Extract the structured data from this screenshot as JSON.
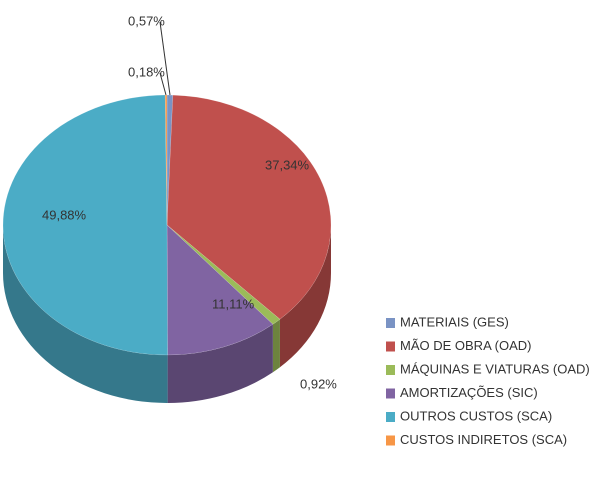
{
  "chart_data": {
    "type": "pie",
    "categories": [
      "MATERIAIS (GES)",
      "MÃO DE OBRA (OAD)",
      "MÁQUINAS E VIATURAS (OAD)",
      "AMORTIZAÇÕES (SIC)",
      "OUTROS CUSTOS (SCA)",
      "CUSTOS INDIRETOS (SCA)"
    ],
    "values": [
      0.57,
      37.34,
      0.92,
      11.11,
      49.88,
      0.18
    ],
    "value_labels": [
      "0,57%",
      "37,34%",
      "0,92%",
      "11,11%",
      "49,88%",
      "0,18%"
    ],
    "colors": [
      "#7a93c4",
      "#c0504d",
      "#9bbb59",
      "#8064a2",
      "#4bacc6",
      "#f79646"
    ],
    "legend": "right"
  }
}
